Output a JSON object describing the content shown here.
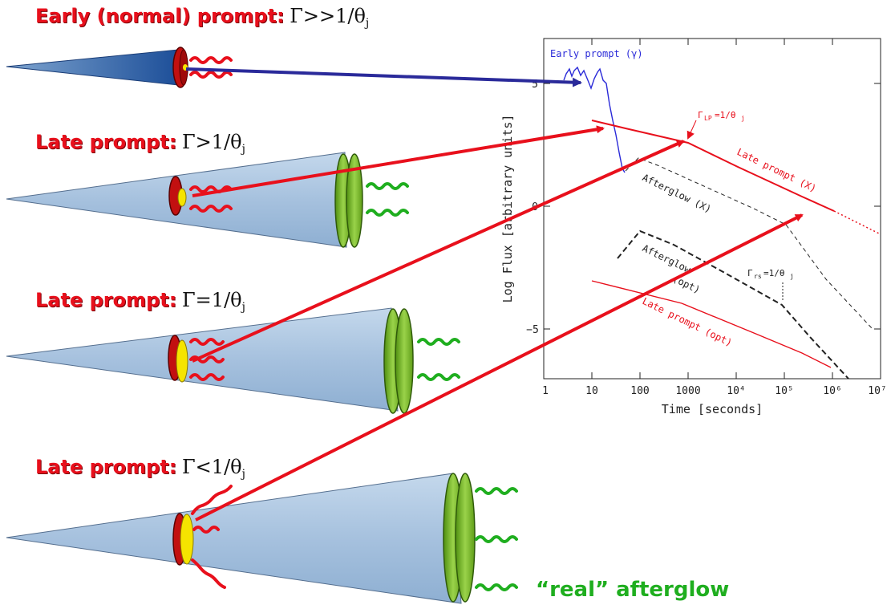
{
  "panels": [
    {
      "prefix": "Early (normal) prompt:",
      "relation": "Γ>>1/θ",
      "sub": "j"
    },
    {
      "prefix": "Late prompt:",
      "relation": "Γ>1/θ",
      "sub": "j"
    },
    {
      "prefix": "Late prompt:",
      "relation": "Γ=1/θ",
      "sub": "j"
    },
    {
      "prefix": "Late prompt:",
      "relation": "Γ<1/θ",
      "sub": "j"
    }
  ],
  "real_afterglow": "“real” afterglow",
  "plot": {
    "xlabel": "Time [seconds]",
    "ylabel": "Log Flux [arbitrary units]",
    "x_ticks": [
      "1",
      "10",
      "100",
      "1000",
      "10⁴",
      "10⁵",
      "10⁶",
      "10⁷"
    ],
    "y_ticks": [
      "5",
      "0",
      "−5"
    ],
    "annotations": {
      "early_prompt": "Early prompt (γ)",
      "gamma_x": "Γ",
      "gamma_x_sub": "LP",
      "gamma_x_rhs": "=1/θ",
      "gamma_x_rhs_sub": "j",
      "late_prompt_x": "Late prompt (X)",
      "afterglow_x": "Afterglow (X)",
      "afterglow_opt_1": "Afterglow",
      "afterglow_opt_2": "(opt)",
      "gamma_opt": "Γ",
      "gamma_opt_sub": "rs",
      "gamma_opt_rhs": "=1/θ",
      "gamma_opt_rhs_sub": "j",
      "late_prompt_opt": "Late prompt (opt)"
    }
  },
  "colors": {
    "red": "#e8101c",
    "blue_arrow": "#2a2a9a",
    "green": "#1fae1f",
    "cone_light": "#a9c4df",
    "cone_dark": "#1d4f99"
  }
}
